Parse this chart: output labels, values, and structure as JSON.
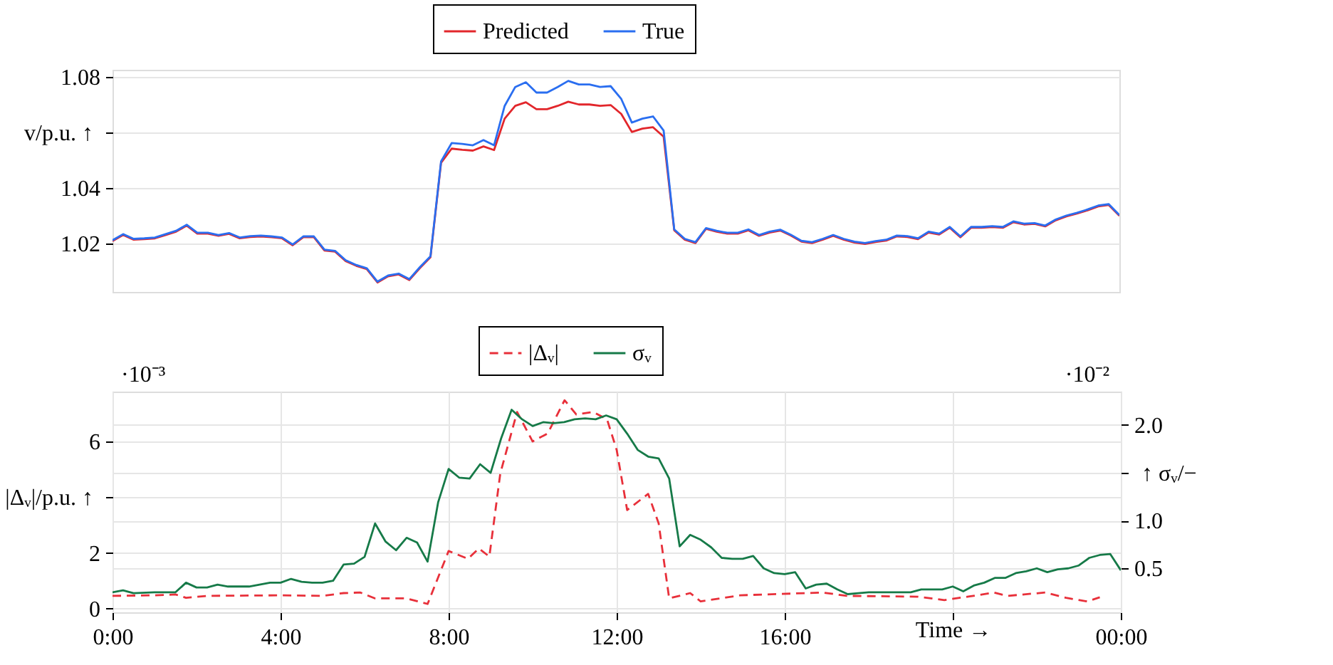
{
  "chart_data": [
    {
      "type": "line",
      "ylabel": "v/p.u. ↑",
      "legend": "top",
      "grid": "y",
      "ylim": [
        1.0026,
        1.0826
      ],
      "yticks": [
        1.02,
        1.04,
        {
          "value": 1.06,
          "label": null
        },
        1.08
      ],
      "categories": [
        null,
        null,
        null,
        null,
        null,
        null,
        null,
        null,
        null,
        null,
        null,
        null,
        null,
        null,
        null,
        null,
        null,
        null,
        null,
        null,
        null,
        null,
        null,
        null,
        null,
        null,
        null,
        null,
        null,
        null,
        null,
        null,
        null,
        null,
        null,
        null,
        null,
        null,
        null,
        null,
        null,
        null,
        null,
        null,
        null,
        null,
        null,
        null,
        null,
        null,
        null,
        null,
        null,
        null,
        null,
        null,
        null,
        null,
        null,
        null,
        null,
        null,
        null,
        null,
        null,
        null,
        null,
        null,
        null,
        null,
        null,
        null,
        null,
        null,
        null,
        null,
        null,
        null,
        null,
        null,
        null,
        null,
        null,
        null,
        null,
        null,
        null,
        null,
        null,
        null,
        null,
        null,
        null,
        null,
        null,
        null
      ],
      "series": [
        {
          "name": "Predicted",
          "color": "#e2262b",
          "values": [
            1.0209,
            1.0231,
            1.0214,
            1.0216,
            1.0219,
            1.0231,
            1.0243,
            1.0265,
            1.0236,
            1.0236,
            1.0228,
            1.0235,
            1.0219,
            1.0224,
            1.0226,
            1.0223,
            1.0219,
            1.0194,
            1.0223,
            1.0223,
            1.0175,
            1.0171,
            1.0137,
            1.012,
            1.0108,
            1.006,
            1.0082,
            1.0089,
            1.0069,
            1.0112,
            1.0151,
            1.0491,
            1.0542,
            1.0538,
            1.0535,
            1.055,
            1.0537,
            1.065,
            1.0696,
            1.0709,
            1.0684,
            1.0684,
            1.0696,
            1.0711,
            1.0701,
            1.0701,
            1.0696,
            1.0699,
            1.0667,
            1.0602,
            1.0614,
            1.0619,
            1.0585,
            1.0248,
            1.0214,
            1.0202,
            1.0253,
            1.0243,
            1.0236,
            1.0236,
            1.0248,
            1.0228,
            1.024,
            1.0247,
            1.0229,
            1.0207,
            1.0202,
            1.0214,
            1.0228,
            1.0214,
            1.0204,
            1.0199,
            1.0206,
            1.0211,
            1.0226,
            1.0224,
            1.0216,
            1.024,
            1.0233,
            1.0257,
            1.0223,
            1.0257,
            1.0257,
            1.026,
            1.0257,
            1.0277,
            1.0269,
            1.0271,
            1.0262,
            1.0284,
            1.0298,
            1.0308,
            1.032,
            1.0334,
            1.0339,
            1.03
          ]
        },
        {
          "name": "True",
          "color": "#2a6ef0",
          "values": [
            1.0212,
            1.0234,
            1.0217,
            1.0219,
            1.0222,
            1.0234,
            1.0246,
            1.0268,
            1.0239,
            1.0239,
            1.0231,
            1.0238,
            1.0222,
            1.0227,
            1.0229,
            1.0226,
            1.0222,
            1.0197,
            1.0226,
            1.0226,
            1.0178,
            1.0174,
            1.014,
            1.0123,
            1.0111,
            1.0063,
            1.0085,
            1.0092,
            1.0072,
            1.0115,
            1.0154,
            1.0496,
            1.0562,
            1.0559,
            1.0554,
            1.0573,
            1.0554,
            1.0696,
            1.0764,
            1.0781,
            1.0744,
            1.0744,
            1.0764,
            1.0786,
            1.0773,
            1.0773,
            1.0764,
            1.0767,
            1.0721,
            1.0636,
            1.065,
            1.0658,
            1.0607,
            1.0251,
            1.0217,
            1.0205,
            1.0256,
            1.0246,
            1.0239,
            1.0239,
            1.0251,
            1.0231,
            1.0243,
            1.025,
            1.0232,
            1.021,
            1.0205,
            1.0217,
            1.0231,
            1.0217,
            1.0207,
            1.0202,
            1.0209,
            1.0214,
            1.0229,
            1.0227,
            1.0219,
            1.0243,
            1.0236,
            1.026,
            1.0226,
            1.026,
            1.026,
            1.0263,
            1.026,
            1.028,
            1.0272,
            1.0274,
            1.0265,
            1.0287,
            1.0301,
            1.0311,
            1.0323,
            1.0337,
            1.0342,
            1.0303
          ]
        }
      ]
    },
    {
      "type": "line",
      "xlabel": "Time →",
      "ylabel": "|Δᵥ|/p.u. ↑",
      "y2label": "↑ σᵥ/−",
      "legend": "top",
      "grid": true,
      "annotations": [
        "·10⁻³",
        "·10⁻²"
      ],
      "xlim": [
        0,
        24
      ],
      "xticks": [
        {
          "value": 0,
          "label": "0:00"
        },
        {
          "value": 4,
          "label": "4:00"
        },
        {
          "value": 8,
          "label": "8:00"
        },
        {
          "value": 12,
          "label": "12:00"
        },
        {
          "value": 16,
          "label": "16:00"
        },
        {
          "value": 20,
          "label": null
        },
        {
          "value": 24,
          "label": "00:00"
        }
      ],
      "ylim": [
        -0.13,
        7.79
      ],
      "yticks": [
        0,
        2,
        {
          "value": 4,
          "label": null
        },
        6
      ],
      "y2lim": [
        0.04,
        2.35
      ],
      "y2ticks": [
        0.5,
        {
          "value": 1,
          "label": "1.0"
        },
        {
          "value": 1.5,
          "label": null
        },
        {
          "value": 2,
          "label": "2.0"
        }
      ],
      "series": [
        {
          "name": "|Δᵥ|",
          "color": "#e8303a",
          "line_style": "dashed",
          "x": [
            0,
            1,
            1.5,
            1.75,
            2.25,
            4,
            5,
            5.5,
            5.9,
            6.25,
            7,
            7.5,
            8,
            8.46,
            8.72,
            8.97,
            9.23,
            9.63,
            10,
            10.36,
            10.76,
            11.04,
            11.44,
            11.77,
            12,
            12.25,
            12.75,
            13,
            13.25,
            13.75,
            14,
            14.94,
            16.9,
            17.48,
            19.17,
            19.8,
            20.4,
            20.98,
            21.3,
            22.2,
            22.7,
            23.2,
            23.5
          ],
          "values": [
            0.46,
            0.48,
            0.51,
            0.39,
            0.46,
            0.48,
            0.46,
            0.56,
            0.58,
            0.37,
            0.37,
            0.17,
            2.07,
            1.79,
            2.16,
            1.87,
            4.85,
            7.06,
            6.0,
            6.29,
            7.48,
            6.97,
            7.06,
            6.8,
            5.7,
            3.54,
            4.12,
            3.06,
            0.37,
            0.56,
            0.26,
            0.48,
            0.58,
            0.46,
            0.43,
            0.31,
            0.44,
            0.58,
            0.46,
            0.58,
            0.39,
            0.26,
            0.41
          ]
        },
        {
          "name": "σᵥ",
          "color": "#167a48",
          "line_style": "solid",
          "axis": "y2",
          "x": [
            0,
            0.25,
            0.5,
            1,
            1.5,
            1.75,
            2,
            2.25,
            2.5,
            2.75,
            3.25,
            3.5,
            3.75,
            4,
            4.25,
            4.5,
            4.75,
            5,
            5.25,
            5.5,
            5.75,
            6,
            6.25,
            6.5,
            6.75,
            7,
            7.25,
            7.5,
            7.75,
            8,
            8.25,
            8.5,
            8.75,
            9,
            9.25,
            9.5,
            9.75,
            10,
            10.25,
            10.5,
            10.75,
            11,
            11.25,
            11.5,
            11.75,
            12,
            12.25,
            12.5,
            12.75,
            13,
            13.25,
            13.5,
            13.75,
            14,
            14.25,
            14.5,
            14.75,
            15,
            15.25,
            15.5,
            15.75,
            16,
            16.25,
            16.5,
            16.75,
            17,
            17.25,
            17.5,
            17.75,
            18,
            18.5,
            19,
            19.25,
            19.5,
            19.75,
            20,
            20.25,
            20.5,
            20.75,
            21,
            21.25,
            21.5,
            21.75,
            22,
            22.25,
            22.5,
            22.75,
            23,
            23.25,
            23.5,
            23.75,
            24
          ],
          "values": [
            0.25,
            0.27,
            0.24,
            0.25,
            0.25,
            0.35,
            0.3,
            0.3,
            0.33,
            0.31,
            0.31,
            0.33,
            0.35,
            0.35,
            0.39,
            0.36,
            0.35,
            0.35,
            0.37,
            0.54,
            0.55,
            0.62,
            0.97,
            0.78,
            0.69,
            0.82,
            0.77,
            0.57,
            1.19,
            1.54,
            1.45,
            1.44,
            1.59,
            1.5,
            1.86,
            2.16,
            2.06,
            1.99,
            2.03,
            2.02,
            2.03,
            2.06,
            2.07,
            2.06,
            2.1,
            2.06,
            1.91,
            1.74,
            1.67,
            1.65,
            1.44,
            0.73,
            0.85,
            0.8,
            0.72,
            0.61,
            0.6,
            0.6,
            0.63,
            0.5,
            0.45,
            0.44,
            0.46,
            0.29,
            0.33,
            0.34,
            0.28,
            0.23,
            0.24,
            0.25,
            0.25,
            0.25,
            0.28,
            0.28,
            0.28,
            0.31,
            0.26,
            0.32,
            0.35,
            0.4,
            0.4,
            0.45,
            0.47,
            0.5,
            0.46,
            0.49,
            0.5,
            0.53,
            0.61,
            0.64,
            0.65,
            0.48
          ]
        }
      ]
    }
  ]
}
